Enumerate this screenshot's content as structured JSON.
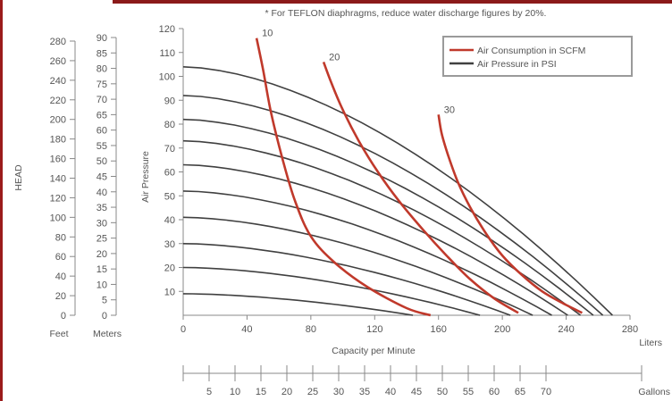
{
  "note": "* For TEFLON diaphragms, reduce water discharge figures by 20%.",
  "colors": {
    "air_consumption": "#c0392b",
    "air_pressure": "#404040",
    "frame": "#9b1c1c",
    "axis": "#888888"
  },
  "chart_data": {
    "type": "line",
    "title": "",
    "xlabel": "Capacity per Minute",
    "x_unit": "Liters",
    "ylabel": "Air Pressure",
    "xlim": [
      0,
      280
    ],
    "ylim": [
      0,
      120
    ],
    "x_ticks": [
      0,
      40,
      80,
      120,
      160,
      200,
      240,
      280
    ],
    "y_ticks": [
      10,
      20,
      30,
      40,
      50,
      60,
      70,
      80,
      90,
      100,
      110,
      120
    ],
    "legend_position": "top-right",
    "legend": [
      "Air Consumption in SCFM",
      "Air Pressure in PSI"
    ],
    "head_feet": {
      "label": "HEAD",
      "unit": "Feet",
      "ticks": [
        0,
        20,
        40,
        60,
        80,
        100,
        120,
        140,
        160,
        180,
        200,
        220,
        240,
        260,
        280
      ]
    },
    "head_meters": {
      "unit": "Meters",
      "ticks": [
        0,
        5,
        10,
        15,
        20,
        25,
        30,
        35,
        40,
        45,
        50,
        55,
        60,
        65,
        70,
        75,
        80,
        85,
        90
      ]
    },
    "gallons": {
      "unit": "Gallons",
      "ticks": [
        5,
        10,
        15,
        20,
        25,
        30,
        35,
        40,
        45,
        50,
        55,
        60,
        65,
        70
      ]
    },
    "pressure_curves": [
      {
        "y0": 104,
        "x_end": 269
      },
      {
        "y0": 92,
        "x_end": 263
      },
      {
        "y0": 82,
        "x_end": 257
      },
      {
        "y0": 73,
        "x_end": 249
      },
      {
        "y0": 63,
        "x_end": 241
      },
      {
        "y0": 52,
        "x_end": 231
      },
      {
        "y0": 41,
        "x_end": 219
      },
      {
        "y0": 30,
        "x_end": 205
      },
      {
        "y0": 20,
        "x_end": 186
      },
      {
        "y0": 9,
        "x_end": 144
      }
    ],
    "consumption_curves": [
      {
        "label": "10",
        "points": [
          [
            46,
            116
          ],
          [
            50,
            103
          ],
          [
            55,
            85
          ],
          [
            62,
            66
          ],
          [
            70,
            48
          ],
          [
            80,
            33
          ],
          [
            95,
            22
          ],
          [
            115,
            12
          ],
          [
            140,
            3
          ],
          [
            155,
            0
          ]
        ]
      },
      {
        "label": "20",
        "points": [
          [
            88,
            106
          ],
          [
            93,
            97
          ],
          [
            100,
            86
          ],
          [
            110,
            73
          ],
          [
            122,
            60
          ],
          [
            135,
            48
          ],
          [
            150,
            36
          ],
          [
            165,
            25
          ],
          [
            180,
            15
          ],
          [
            195,
            7
          ],
          [
            210,
            1
          ]
        ]
      },
      {
        "label": "30",
        "points": [
          [
            160,
            84
          ],
          [
            162,
            76
          ],
          [
            166,
            67
          ],
          [
            172,
            56
          ],
          [
            180,
            45
          ],
          [
            190,
            34
          ],
          [
            200,
            25
          ],
          [
            212,
            17
          ],
          [
            225,
            10
          ],
          [
            238,
            5
          ],
          [
            250,
            1
          ]
        ]
      }
    ]
  }
}
